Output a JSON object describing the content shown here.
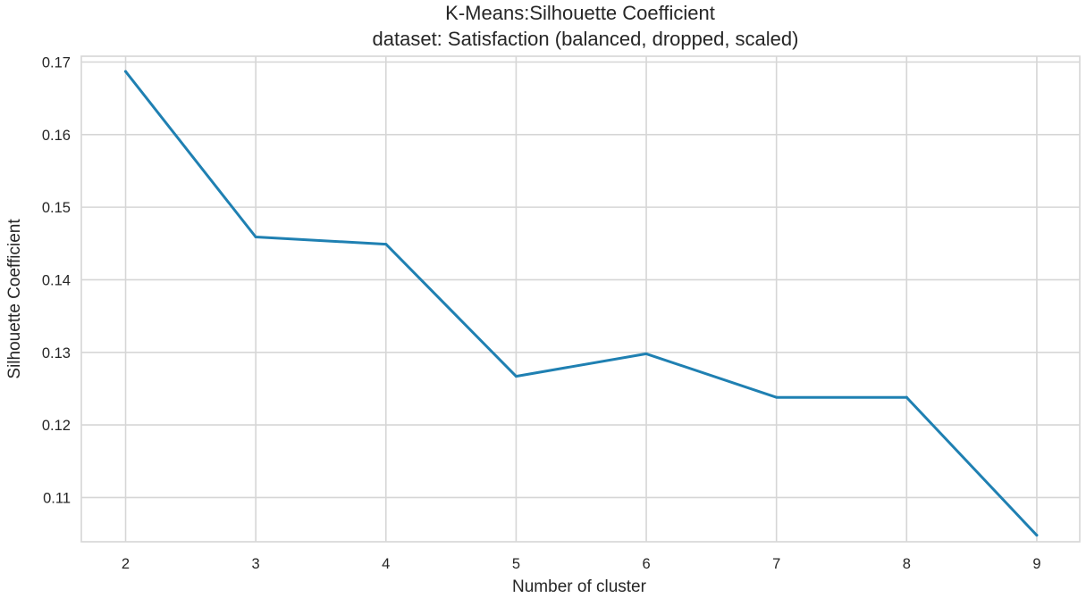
{
  "chart_data": {
    "type": "line",
    "title": "K-Means:Silhouette Coefficient",
    "subtitle": "dataset: Satisfaction (balanced, dropped, scaled)",
    "xlabel": "Number of cluster",
    "ylabel": "Silhouette Coefficient",
    "x": [
      2,
      3,
      4,
      5,
      6,
      7,
      8,
      9
    ],
    "series": [
      {
        "values": [
          0.1687,
          0.1459,
          0.1449,
          0.1267,
          0.1298,
          0.1238,
          0.1238,
          0.1048
        ],
        "color": "#1f80b2"
      }
    ],
    "xticks": [
      "2",
      "3",
      "4",
      "5",
      "6",
      "7",
      "8",
      "9"
    ],
    "yticks": [
      "0.11",
      "0.12",
      "0.13",
      "0.14",
      "0.15",
      "0.16",
      "0.17"
    ],
    "xlim": [
      1.66,
      9.33
    ],
    "ylim": [
      0.1039,
      0.1708
    ],
    "grid": true,
    "legend": "none"
  }
}
